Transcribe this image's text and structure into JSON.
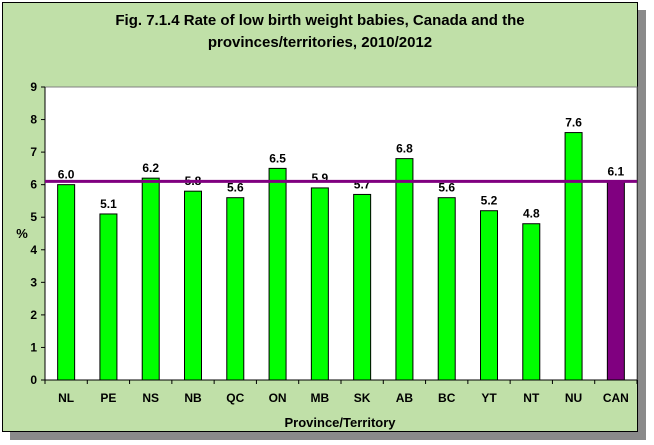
{
  "chart_data": {
    "type": "bar",
    "title_line1": "Fig. 7.1.4 Rate of low birth weight babies, Canada and the",
    "title_line2": "provinces/territories, 2010/2012",
    "xlabel": "Province/Territory",
    "ylabel": "%",
    "ylim": [
      0,
      9
    ],
    "yticks": [
      "0",
      "1",
      "2",
      "3",
      "4",
      "5",
      "6",
      "7",
      "8",
      "9"
    ],
    "categories": [
      "NL",
      "PE",
      "NS",
      "NB",
      "QC",
      "ON",
      "MB",
      "SK",
      "AB",
      "BC",
      "YT",
      "NT",
      "NU",
      "CAN"
    ],
    "values": [
      6.0,
      5.1,
      6.2,
      5.8,
      5.6,
      6.5,
      5.9,
      5.7,
      6.8,
      5.6,
      5.2,
      4.8,
      7.6,
      6.1
    ],
    "value_labels": [
      "6.0",
      "5.1",
      "6.2",
      "5.8",
      "5.6",
      "6.5",
      "5.9",
      "5.7",
      "6.8",
      "5.6",
      "5.2",
      "4.8",
      "7.6",
      "6.1"
    ],
    "reference_line": 6.1,
    "grid": false,
    "colors": {
      "province_bar": "#00ff00",
      "canada_bar": "#800080",
      "reference_line": "#800080",
      "background": "#c0e0a8",
      "plot_area": "#ffffff"
    }
  }
}
